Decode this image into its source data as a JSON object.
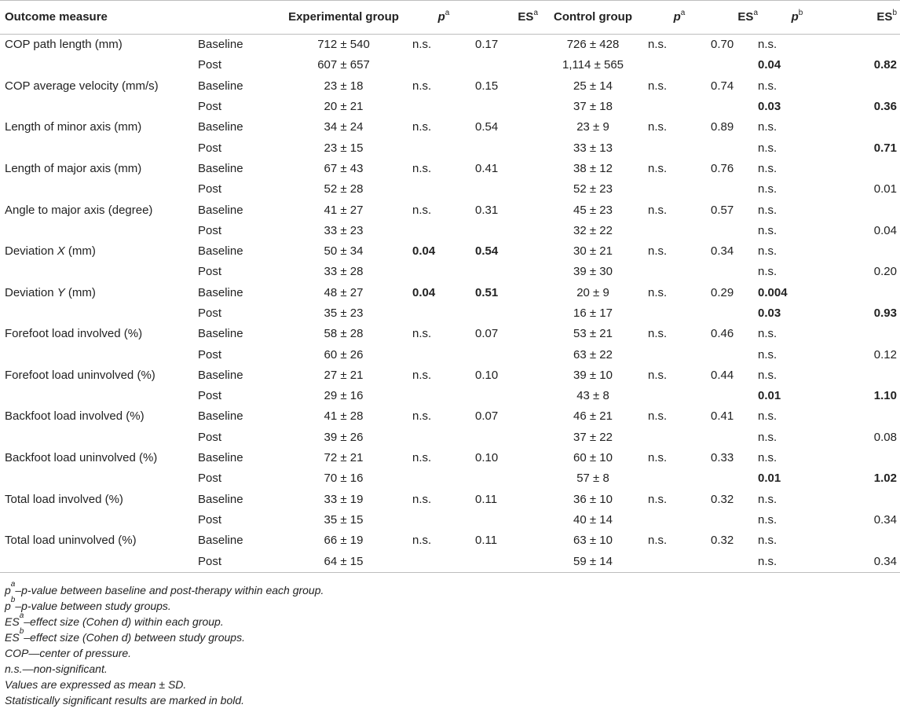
{
  "header": {
    "outcome": "Outcome measure",
    "exp": "Experimental group",
    "ctrl": "Control group",
    "p_letter": "p",
    "es_letters": "ES",
    "sup_a": "a",
    "sup_b": "b"
  },
  "rows": [
    {
      "measure": "COP path length (mm)",
      "rows": [
        {
          "time": "Baseline",
          "exp": "712 ± 540",
          "pa1": "n.s.",
          "esa1": "0.17",
          "ctrl": "726 ± 428",
          "pa2": "n.s.",
          "esa2": "0.70",
          "pb": "n.s.",
          "esb": ""
        },
        {
          "time": "Post",
          "exp": "607 ± 657",
          "pa1": "",
          "esa1": "",
          "ctrl": "1,114 ± 565",
          "pa2": "",
          "esa2": "",
          "pb": "0.04",
          "esb": "0.82",
          "bold": [
            "pb",
            "esb"
          ]
        }
      ]
    },
    {
      "measure": "COP average velocity (mm/s)",
      "rows": [
        {
          "time": "Baseline",
          "exp": "23 ± 18",
          "pa1": "n.s.",
          "esa1": "0.15",
          "ctrl": "25 ± 14",
          "pa2": "n.s.",
          "esa2": "0.74",
          "pb": "n.s.",
          "esb": ""
        },
        {
          "time": "Post",
          "exp": "20 ± 21",
          "pa1": "",
          "esa1": "",
          "ctrl": "37 ± 18",
          "pa2": "",
          "esa2": "",
          "pb": "0.03",
          "esb": "0.36",
          "bold": [
            "pb",
            "esb"
          ]
        }
      ]
    },
    {
      "measure": "Length of minor axis (mm)",
      "rows": [
        {
          "time": "Baseline",
          "exp": "34 ± 24",
          "pa1": "n.s.",
          "esa1": "0.54",
          "ctrl": "23 ± 9",
          "pa2": "n.s.",
          "esa2": "0.89",
          "pb": "n.s.",
          "esb": ""
        },
        {
          "time": "Post",
          "exp": "23 ± 15",
          "pa1": "",
          "esa1": "",
          "ctrl": "33 ± 13",
          "pa2": "",
          "esa2": "",
          "pb": "n.s.",
          "esb": "0.71",
          "bold": [
            "esb"
          ]
        }
      ]
    },
    {
      "measure": "Length of major axis (mm)",
      "rows": [
        {
          "time": "Baseline",
          "exp": "67 ± 43",
          "pa1": "n.s.",
          "esa1": "0.41",
          "ctrl": "38 ± 12",
          "pa2": "n.s.",
          "esa2": "0.76",
          "pb": "n.s.",
          "esb": ""
        },
        {
          "time": "Post",
          "exp": "52 ± 28",
          "pa1": "",
          "esa1": "",
          "ctrl": "52 ± 23",
          "pa2": "",
          "esa2": "",
          "pb": "n.s.",
          "esb": "0.01"
        }
      ]
    },
    {
      "measure": "Angle to major axis (degree)",
      "rows": [
        {
          "time": "Baseline",
          "exp": "41 ± 27",
          "pa1": "n.s.",
          "esa1": "0.31",
          "ctrl": "45 ± 23",
          "pa2": "n.s.",
          "esa2": "0.57",
          "pb": "n.s.",
          "esb": ""
        },
        {
          "time": "Post",
          "exp": "33 ± 23",
          "pa1": "",
          "esa1": "",
          "ctrl": "32 ± 22",
          "pa2": "",
          "esa2": "",
          "pb": "n.s.",
          "esb": "0.04"
        }
      ]
    },
    {
      "measure": "Deviation ",
      "measure_var": "X",
      "measure_unit": " (mm)",
      "rows": [
        {
          "time": "Baseline",
          "exp": "50 ± 34",
          "pa1": "0.04",
          "esa1": "0.54",
          "ctrl": "30 ± 21",
          "pa2": "n.s.",
          "esa2": "0.34",
          "pb": "n.s.",
          "esb": "",
          "bold": [
            "pa1",
            "esa1"
          ]
        },
        {
          "time": "Post",
          "exp": "33 ± 28",
          "pa1": "",
          "esa1": "",
          "ctrl": "39 ± 30",
          "pa2": "",
          "esa2": "",
          "pb": "n.s.",
          "esb": "0.20"
        }
      ]
    },
    {
      "measure": "Deviation ",
      "measure_var": "Y",
      "measure_unit": " (mm)",
      "rows": [
        {
          "time": "Baseline",
          "exp": "48 ± 27",
          "pa1": "0.04",
          "esa1": "0.51",
          "ctrl": "20 ± 9",
          "pa2": "n.s.",
          "esa2": "0.29",
          "pb": "0.004",
          "esb": "",
          "bold": [
            "pa1",
            "esa1",
            "pb"
          ]
        },
        {
          "time": "Post",
          "exp": "35 ± 23",
          "pa1": "",
          "esa1": "",
          "ctrl": "16 ± 17",
          "pa2": "",
          "esa2": "",
          "pb": "0.03",
          "esb": "0.93",
          "bold": [
            "pb",
            "esb"
          ]
        }
      ]
    },
    {
      "measure": "Forefoot load involved (%)",
      "rows": [
        {
          "time": "Baseline",
          "exp": "58 ± 28",
          "pa1": "n.s.",
          "esa1": "0.07",
          "ctrl": "53 ± 21",
          "pa2": "n.s.",
          "esa2": "0.46",
          "pb": "n.s.",
          "esb": ""
        },
        {
          "time": "Post",
          "exp": "60 ± 26",
          "pa1": "",
          "esa1": "",
          "ctrl": "63 ± 22",
          "pa2": "",
          "esa2": "",
          "pb": "n.s.",
          "esb": "0.12"
        }
      ]
    },
    {
      "measure": "Forefoot load uninvolved (%)",
      "rows": [
        {
          "time": "Baseline",
          "exp": "27 ± 21",
          "pa1": "n.s.",
          "esa1": "0.10",
          "ctrl": "39 ± 10",
          "pa2": "n.s.",
          "esa2": "0.44",
          "pb": "n.s.",
          "esb": ""
        },
        {
          "time": "Post",
          "exp": "29 ± 16",
          "pa1": "",
          "esa1": "",
          "ctrl": "43 ± 8",
          "pa2": "",
          "esa2": "",
          "pb": "0.01",
          "esb": "1.10",
          "bold": [
            "pb",
            "esb"
          ]
        }
      ]
    },
    {
      "measure": "Backfoot load involved (%)",
      "rows": [
        {
          "time": "Baseline",
          "exp": "41 ± 28",
          "pa1": "n.s.",
          "esa1": "0.07",
          "ctrl": "46 ± 21",
          "pa2": "n.s.",
          "esa2": "0.41",
          "pb": "n.s.",
          "esb": ""
        },
        {
          "time": "Post",
          "exp": "39 ± 26",
          "pa1": "",
          "esa1": "",
          "ctrl": "37 ± 22",
          "pa2": "",
          "esa2": "",
          "pb": "n.s.",
          "esb": "0.08"
        }
      ]
    },
    {
      "measure": "Backfoot load uninvolved (%)",
      "rows": [
        {
          "time": "Baseline",
          "exp": "72 ± 21",
          "pa1": "n.s.",
          "esa1": "0.10",
          "ctrl": "60 ± 10",
          "pa2": "n.s.",
          "esa2": "0.33",
          "pb": "n.s.",
          "esb": ""
        },
        {
          "time": "Post",
          "exp": "70 ± 16",
          "pa1": "",
          "esa1": "",
          "ctrl": "57 ± 8",
          "pa2": "",
          "esa2": "",
          "pb": "0.01",
          "esb": "1.02",
          "bold": [
            "pb",
            "esb"
          ]
        }
      ]
    },
    {
      "measure": "Total load involved (%)",
      "rows": [
        {
          "time": "Baseline",
          "exp": "33 ± 19",
          "pa1": "n.s.",
          "esa1": "0.11",
          "ctrl": "36 ± 10",
          "pa2": "n.s.",
          "esa2": "0.32",
          "pb": "n.s.",
          "esb": ""
        },
        {
          "time": "Post",
          "exp": "35 ± 15",
          "pa1": "",
          "esa1": "",
          "ctrl": "40 ± 14",
          "pa2": "",
          "esa2": "",
          "pb": "n.s.",
          "esb": "0.34"
        }
      ]
    },
    {
      "measure": "Total load uninvolved (%)",
      "rows": [
        {
          "time": "Baseline",
          "exp": "66 ± 19",
          "pa1": "n.s.",
          "esa1": "0.11",
          "ctrl": "63 ± 10",
          "pa2": "n.s.",
          "esa2": "0.32",
          "pb": "n.s.",
          "esb": ""
        },
        {
          "time": "Post",
          "exp": "64 ± 15",
          "pa1": "",
          "esa1": "",
          "ctrl": "59 ± 14",
          "pa2": "",
          "esa2": "",
          "pb": "n.s.",
          "esb": "0.34"
        }
      ]
    }
  ],
  "notes": [
    {
      "pre": "p",
      "sup": "a",
      "text": "–p-value between baseline and post-therapy within each group."
    },
    {
      "pre": "p",
      "sup": "b",
      "text": "–p-value between study groups."
    },
    {
      "pre": "ES",
      "sup": "a",
      "text": "–effect size (Cohen d) within each group."
    },
    {
      "pre": "ES",
      "sup": "b",
      "text": "–effect size (Cohen d) between study groups."
    },
    {
      "pre": "",
      "sup": "",
      "text": "COP—center of pressure."
    },
    {
      "pre": "",
      "sup": "",
      "text": "n.s.—non-significant."
    },
    {
      "pre": "",
      "sup": "",
      "text": "Values are expressed as mean ± SD."
    },
    {
      "pre": "",
      "sup": "",
      "text": "Statistically significant results are marked in bold."
    }
  ]
}
